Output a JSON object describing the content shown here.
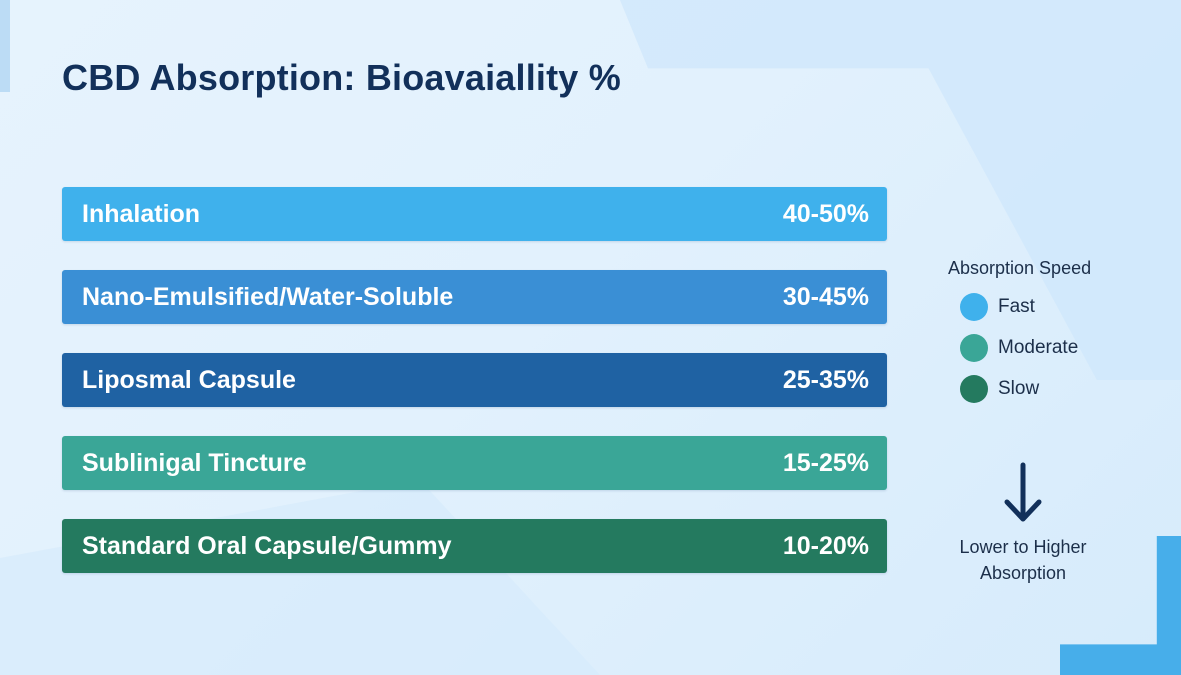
{
  "chart_data": {
    "type": "bar",
    "title": "CBD Absorption: Bioavaiallity %",
    "categories": [
      "Inhalation",
      "Nano-Emulsified/Water-Soluble",
      "Liposmal Capsule",
      "Sublinigal Tincture",
      "Standard Oral Capsule/Gummy"
    ],
    "ranges": [
      [
        40,
        50
      ],
      [
        30,
        45
      ],
      [
        25,
        35
      ],
      [
        15,
        25
      ],
      [
        10,
        20
      ]
    ],
    "value_labels": [
      "40-50%",
      "30-45%",
      "25-35%",
      "15-25%",
      "10-20%"
    ],
    "bar_colors": [
      "#3fb1ec",
      "#3a8fd5",
      "#1f62a3",
      "#3aa697",
      "#247a5f"
    ],
    "legend": {
      "title": "Absorption Speed",
      "items": [
        {
          "label": "Fast",
          "color": "#3fb1ec"
        },
        {
          "label": "Moderate",
          "color": "#3aa697"
        },
        {
          "label": "Slow",
          "color": "#247a5f"
        }
      ]
    },
    "annotation": {
      "icon": "arrow-down-icon",
      "line1": "Lower to Higher",
      "line2": "Absorption",
      "color": "#12305a"
    }
  }
}
